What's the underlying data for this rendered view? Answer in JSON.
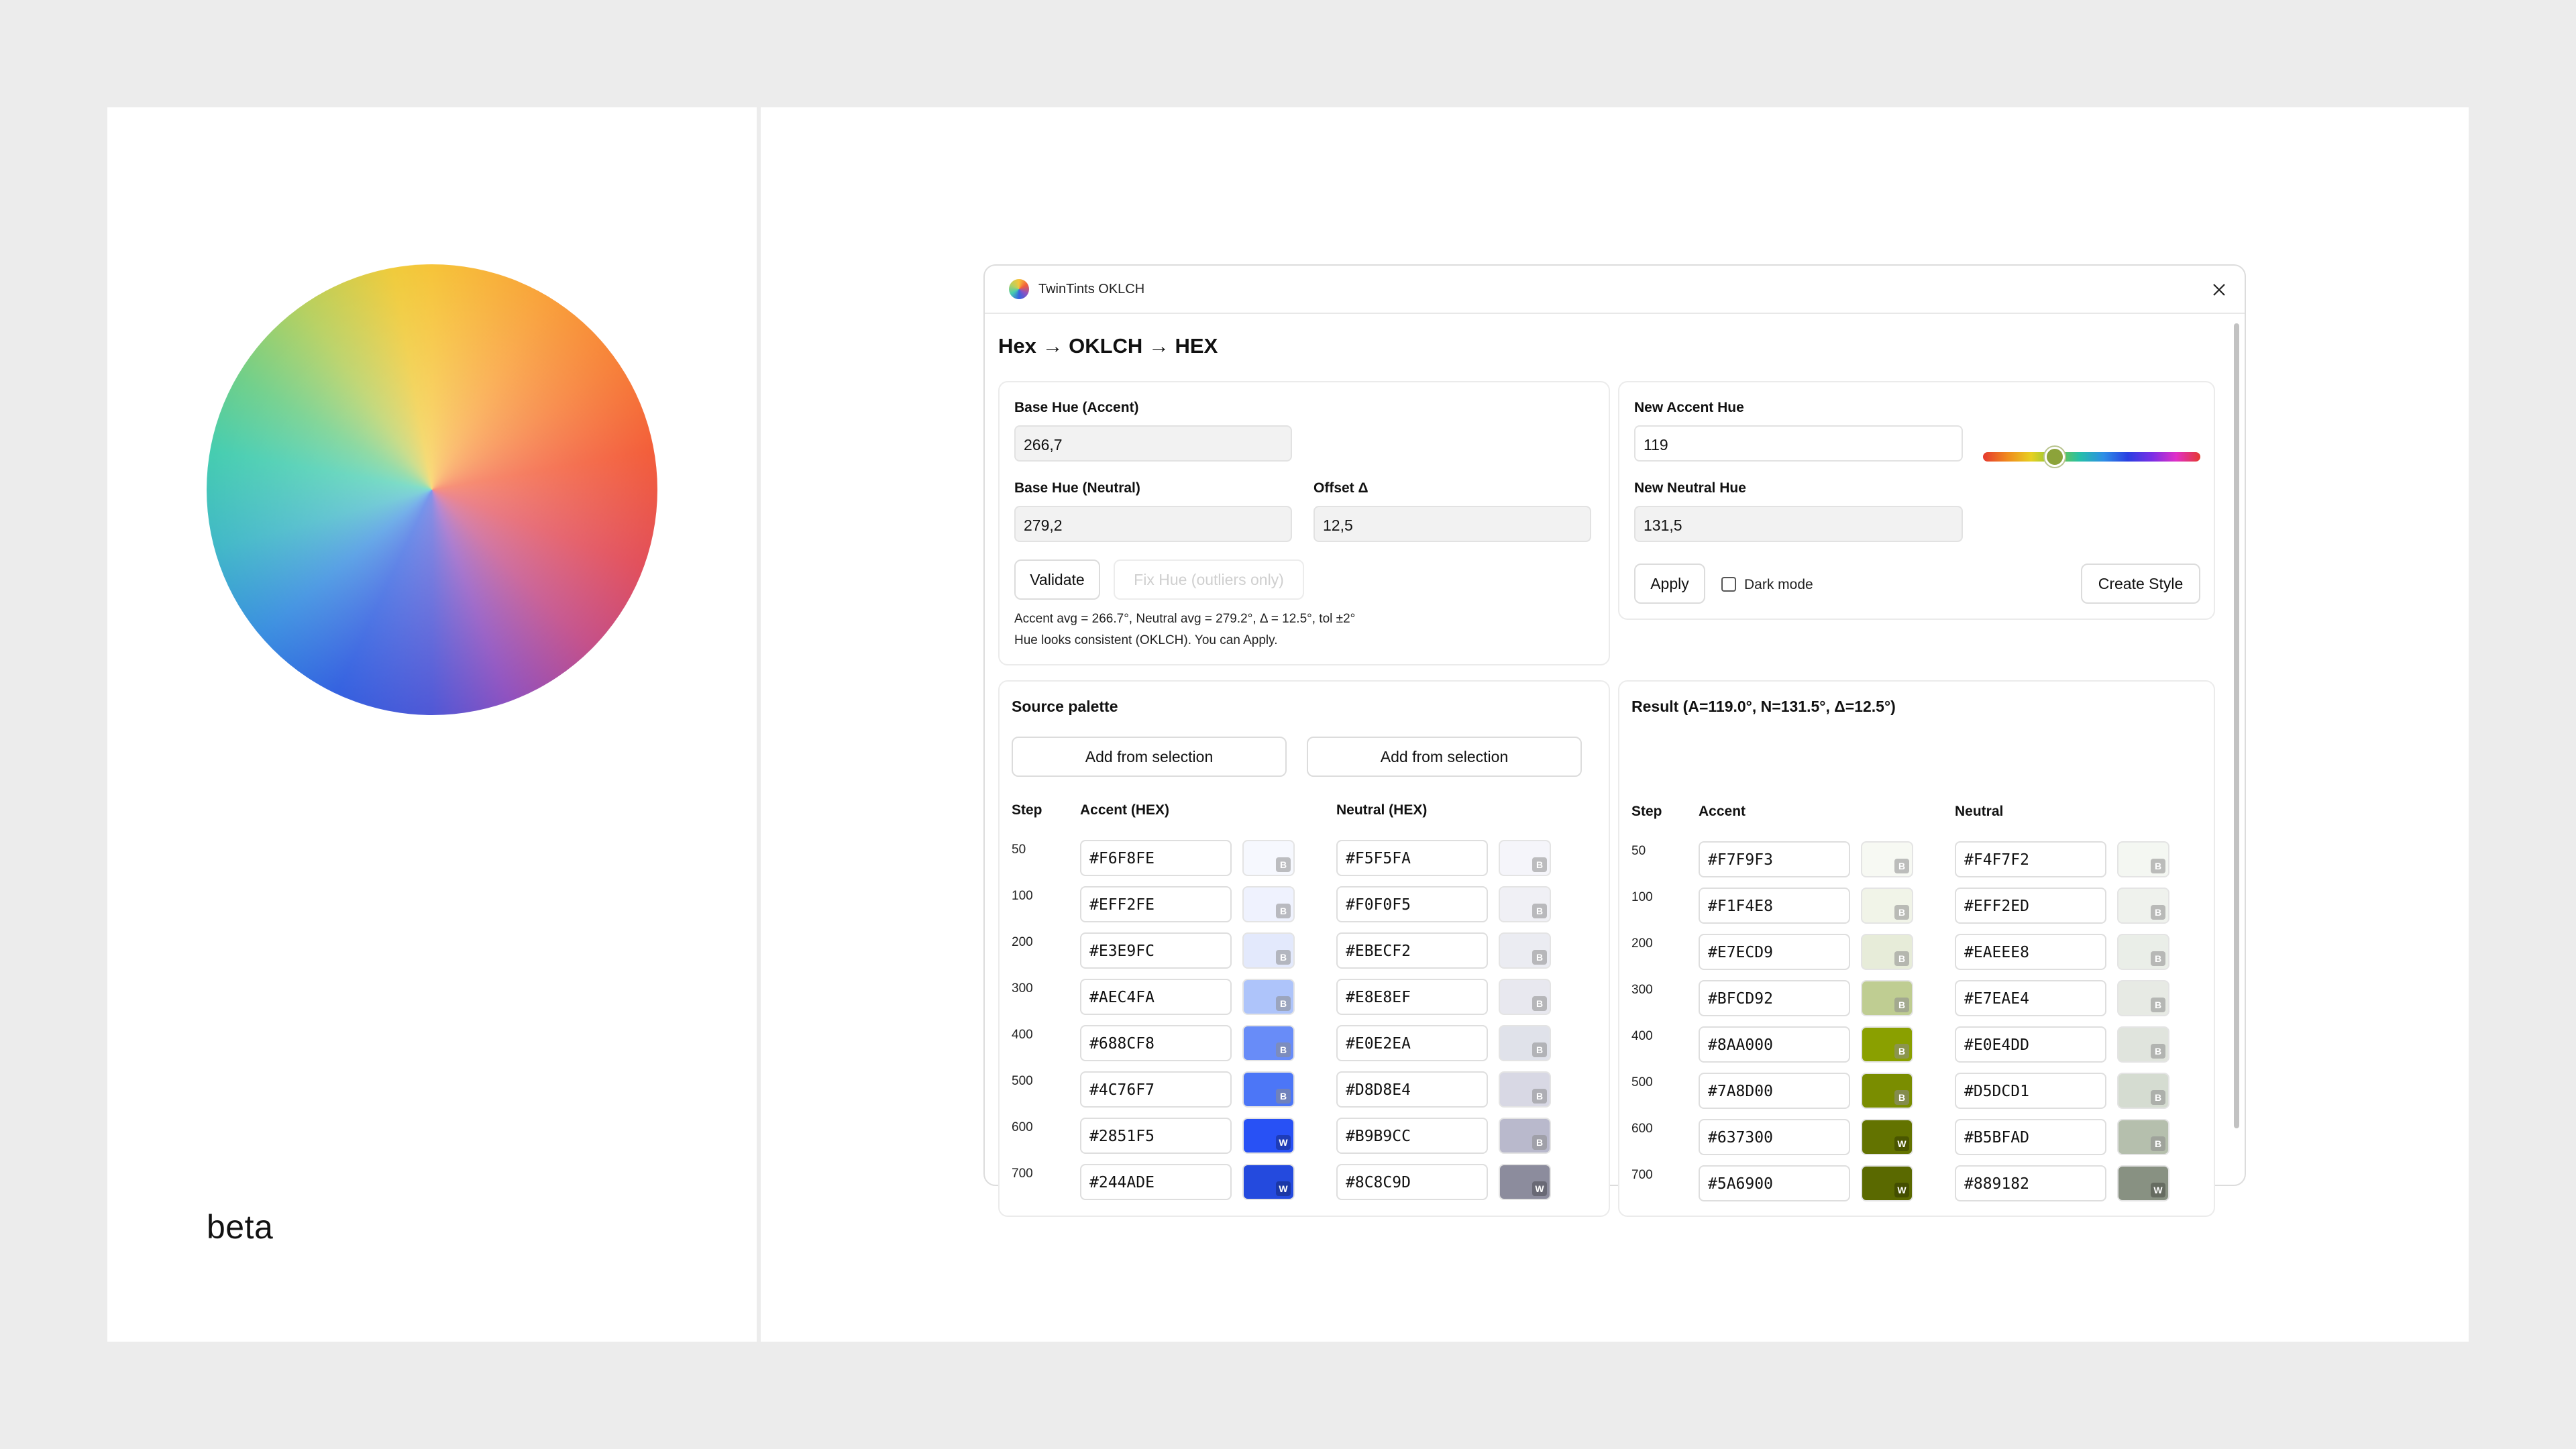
{
  "brand_tag": "beta",
  "window": {
    "title": "TwinTints OKLCH",
    "heading": "Hex → OKLCH → HEX"
  },
  "base_panel": {
    "accent_label": "Base Hue (Accent)",
    "accent_value": "266,7",
    "neutral_label": "Base Hue (Neutral)",
    "neutral_value": "279,2",
    "offset_label": "Offset Δ",
    "offset_value": "12,5",
    "validate_label": "Validate",
    "fix_label": "Fix Hue (outliers only)",
    "status_line1": "Accent avg = 266.7°, Neutral avg = 279.2°, Δ = 12.5°, tol ±2°",
    "status_line2": "Hue looks consistent (OKLCH). You can Apply."
  },
  "new_panel": {
    "accent_label": "New Accent Hue",
    "accent_value": "119",
    "neutral_label": "New Neutral Hue",
    "neutral_value": "131,5",
    "apply_label": "Apply",
    "dark_mode_label": "Dark mode",
    "dark_mode_checked": false,
    "create_style_label": "Create Style",
    "hue_slider_value": 119
  },
  "source": {
    "title": "Source palette",
    "add_accent_label": "Add from selection",
    "add_neutral_label": "Add from selection",
    "col_step": "Step",
    "col_accent": "Accent (HEX)",
    "col_neutral": "Neutral (HEX)",
    "rows": [
      {
        "step": "50",
        "accent": "#F6F8FE",
        "accent_badge": "B",
        "neutral": "#F5F5FA",
        "neutral_badge": "B"
      },
      {
        "step": "100",
        "accent": "#EFF2FE",
        "accent_badge": "B",
        "neutral": "#F0F0F5",
        "neutral_badge": "B"
      },
      {
        "step": "200",
        "accent": "#E3E9FC",
        "accent_badge": "B",
        "neutral": "#EBECF2",
        "neutral_badge": "B"
      },
      {
        "step": "300",
        "accent": "#AEC4FA",
        "accent_badge": "B",
        "neutral": "#E8E8EF",
        "neutral_badge": "B"
      },
      {
        "step": "400",
        "accent": "#688CF8",
        "accent_badge": "B",
        "neutral": "#E0E2EA",
        "neutral_badge": "B"
      },
      {
        "step": "500",
        "accent": "#4C76F7",
        "accent_badge": "B",
        "neutral": "#D8D8E4",
        "neutral_badge": "B"
      },
      {
        "step": "600",
        "accent": "#2851F5",
        "accent_badge": "W",
        "neutral": "#B9B9CC",
        "neutral_badge": "B"
      },
      {
        "step": "700",
        "accent": "#244ADE",
        "accent_badge": "W",
        "neutral": "#8C8C9D",
        "neutral_badge": "W"
      }
    ]
  },
  "result": {
    "title": "Result (A=119.0°, N=131.5°, Δ=12.5°)",
    "col_step": "Step",
    "col_accent": "Accent",
    "col_neutral": "Neutral",
    "rows": [
      {
        "step": "50",
        "accent": "#F7F9F3",
        "accent_badge": "B",
        "neutral": "#F4F7F2",
        "neutral_badge": "B"
      },
      {
        "step": "100",
        "accent": "#F1F4E8",
        "accent_badge": "B",
        "neutral": "#EFF2ED",
        "neutral_badge": "B"
      },
      {
        "step": "200",
        "accent": "#E7ECD9",
        "accent_badge": "B",
        "neutral": "#EAEEE8",
        "neutral_badge": "B"
      },
      {
        "step": "300",
        "accent": "#BFCD92",
        "accent_badge": "B",
        "neutral": "#E7EAE4",
        "neutral_badge": "B"
      },
      {
        "step": "400",
        "accent": "#8AA000",
        "accent_badge": "B",
        "neutral": "#E0E4DD",
        "neutral_badge": "B"
      },
      {
        "step": "500",
        "accent": "#7A8D00",
        "accent_badge": "B",
        "neutral": "#D5DCD1",
        "neutral_badge": "B"
      },
      {
        "step": "600",
        "accent": "#637300",
        "accent_badge": "W",
        "neutral": "#B5BFAD",
        "neutral_badge": "B"
      },
      {
        "step": "700",
        "accent": "#5A6900",
        "accent_badge": "W",
        "neutral": "#889182",
        "neutral_badge": "W"
      }
    ]
  }
}
